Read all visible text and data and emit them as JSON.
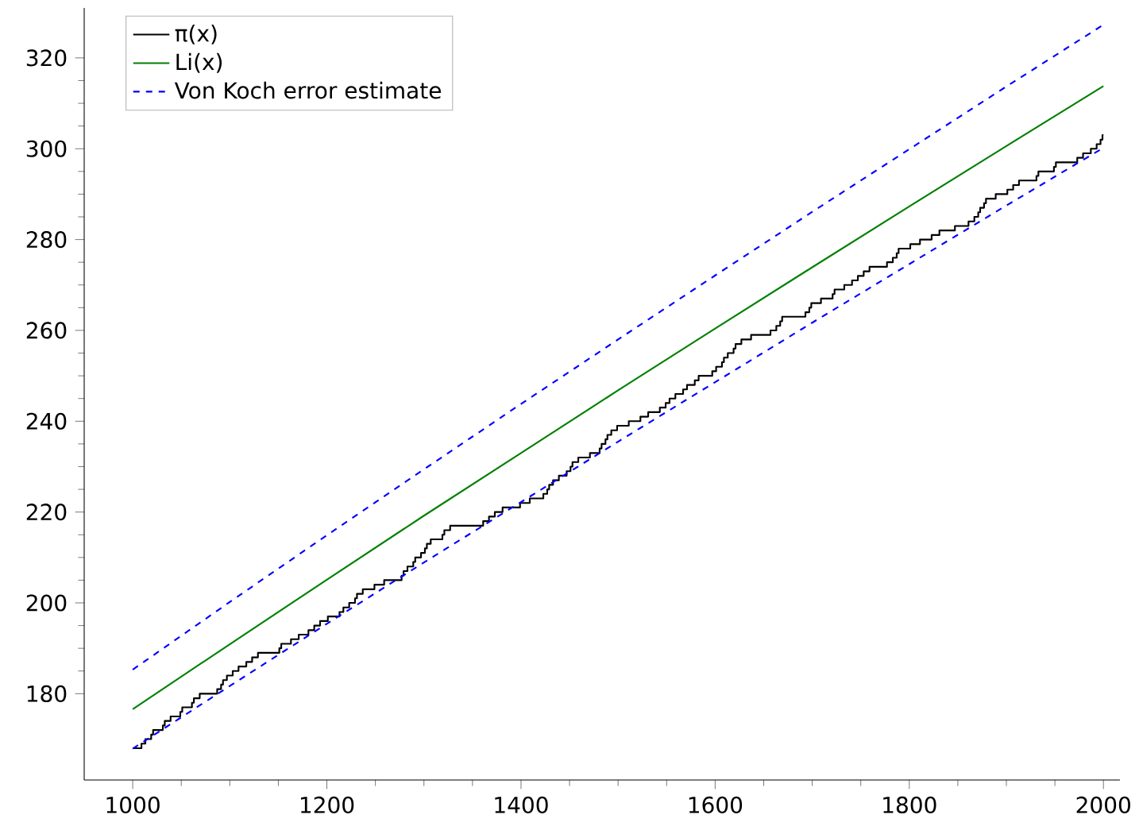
{
  "chart_data": {
    "type": "line",
    "xlim": [
      950,
      2017
    ],
    "ylim": [
      161,
      331
    ],
    "xticks": [
      1000,
      1200,
      1400,
      1600,
      1800,
      2000
    ],
    "yticks": [
      180,
      200,
      220,
      240,
      260,
      280,
      300,
      320
    ],
    "grid": false,
    "legend": "top left",
    "marker": "none",
    "series": [
      {
        "name": "π(x)",
        "type": "step",
        "color": "#000000",
        "line_style": "solid",
        "x": [
          1000,
          1009,
          1013,
          1019,
          1021,
          1031,
          1033,
          1039,
          1049,
          1051,
          1061,
          1063,
          1069,
          1087,
          1091,
          1093,
          1097,
          1103,
          1109,
          1117,
          1123,
          1129,
          1151,
          1153,
          1163,
          1171,
          1181,
          1187,
          1193,
          1201,
          1213,
          1217,
          1223,
          1229,
          1231,
          1237,
          1249,
          1259,
          1277,
          1279,
          1283,
          1289,
          1291,
          1297,
          1301,
          1303,
          1307,
          1319,
          1321,
          1327,
          1361,
          1367,
          1373,
          1381,
          1399,
          1409,
          1423,
          1427,
          1429,
          1433,
          1439,
          1447,
          1451,
          1453,
          1459,
          1471,
          1481,
          1483,
          1487,
          1489,
          1493,
          1499,
          1511,
          1523,
          1531,
          1543,
          1549,
          1553,
          1559,
          1567,
          1571,
          1579,
          1583,
          1597,
          1601,
          1607,
          1609,
          1613,
          1619,
          1621,
          1627,
          1637,
          1657,
          1663,
          1667,
          1669,
          1693,
          1697,
          1699,
          1709,
          1721,
          1723,
          1733,
          1741,
          1747,
          1753,
          1759,
          1777,
          1783,
          1787,
          1789,
          1801,
          1811,
          1823,
          1831,
          1847,
          1861,
          1867,
          1871,
          1873,
          1877,
          1879,
          1889,
          1901,
          1907,
          1913,
          1931,
          1933,
          1949,
          1951,
          1973,
          1979,
          1987,
          1993,
          1997,
          1999,
          2000
        ],
        "values": [
          168,
          169,
          170,
          171,
          172,
          173,
          174,
          175,
          176,
          177,
          178,
          179,
          180,
          181,
          182,
          183,
          184,
          185,
          186,
          187,
          188,
          189,
          190,
          191,
          192,
          193,
          194,
          195,
          196,
          197,
          198,
          199,
          200,
          201,
          202,
          203,
          204,
          205,
          206,
          207,
          208,
          209,
          210,
          211,
          212,
          213,
          214,
          215,
          216,
          217,
          218,
          219,
          220,
          221,
          222,
          223,
          224,
          225,
          226,
          227,
          228,
          229,
          230,
          231,
          232,
          233,
          234,
          235,
          236,
          237,
          238,
          239,
          240,
          241,
          242,
          243,
          244,
          245,
          246,
          247,
          248,
          249,
          250,
          251,
          252,
          253,
          254,
          255,
          256,
          257,
          258,
          259,
          260,
          261,
          262,
          263,
          264,
          265,
          266,
          267,
          268,
          269,
          270,
          271,
          272,
          273,
          274,
          275,
          276,
          277,
          278,
          279,
          280,
          281,
          282,
          283,
          284,
          285,
          286,
          287,
          288,
          289,
          290,
          291,
          292,
          293,
          294,
          295,
          296,
          297,
          298,
          299,
          300,
          301,
          302,
          303,
          303
        ]
      },
      {
        "name": "Li(x)",
        "color": "#008000",
        "line_style": "solid",
        "x": [
          1000,
          1100,
          1200,
          1300,
          1400,
          1500,
          1600,
          1700,
          1800,
          1900,
          2000
        ],
        "values": [
          176.6,
          190.9,
          205.1,
          219.2,
          233.0,
          246.8,
          260.4,
          273.9,
          287.3,
          300.6,
          313.8
        ]
      },
      {
        "name": "Von Koch error estimate",
        "color": "#0000ff",
        "line_style": "dashed",
        "x": [
          1000,
          1100,
          1200,
          1300,
          1400,
          1500,
          1600,
          1700,
          1800,
          1900,
          2000
        ],
        "values": [
          185.3,
          200.2,
          214.9,
          229.4,
          243.8,
          258.0,
          272.1,
          286.1,
          299.9,
          313.7,
          327.3
        ]
      },
      {
        "color": "#0000ff",
        "line_style": "dashed",
        "x": [
          1000,
          1100,
          1200,
          1300,
          1400,
          1500,
          1600,
          1700,
          1800,
          1900,
          2000
        ],
        "values": [
          167.9,
          181.7,
          195.4,
          208.9,
          222.2,
          235.5,
          248.6,
          261.7,
          274.6,
          287.5,
          300.2
        ]
      }
    ]
  }
}
